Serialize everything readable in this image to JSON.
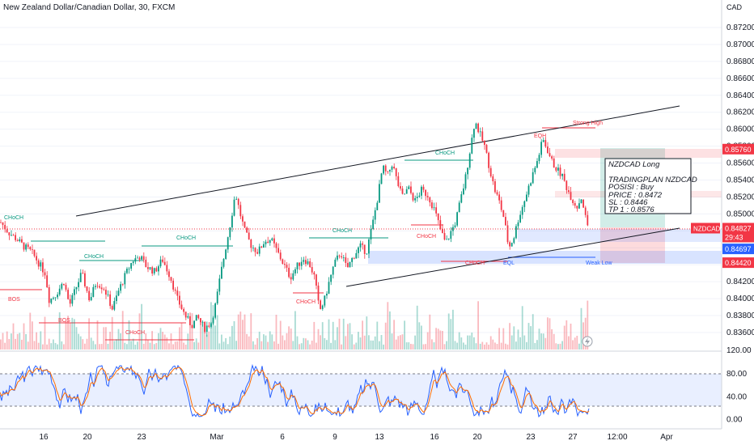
{
  "header": {
    "title": "New Zealand Dollar/Canadian Dollar, 30, FXCM",
    "currency": "CAD"
  },
  "chart_data": [
    {
      "type": "candlestick",
      "title": "New Zealand Dollar/Canadian Dollar, 30, FXCM",
      "symbol": "NZDCAD",
      "interval": "30",
      "source": "FXCM",
      "yaxis": {
        "ticks": [
          "0.87200",
          "0.87000",
          "0.86800",
          "0.86600",
          "0.86400",
          "0.86200",
          "0.86000",
          "0.85800",
          "0.85600",
          "0.85400",
          "0.85200",
          "0.85000",
          "0.84800",
          "0.84600",
          "0.84400",
          "0.84200",
          "0.84000",
          "0.83800",
          "0.83600"
        ],
        "range": [
          0.8352,
          0.8738
        ]
      },
      "xaxis": {
        "ticks": [
          "16",
          "20",
          "23",
          "Mar",
          "6",
          "9",
          "13",
          "16",
          "20",
          "23",
          "27",
          "12:00",
          "Apr"
        ]
      },
      "close_path": [
        [
          0,
          0.849
        ],
        [
          10,
          0.8478
        ],
        [
          20,
          0.847
        ],
        [
          28,
          0.8462
        ],
        [
          38,
          0.8455
        ],
        [
          45,
          0.8445
        ],
        [
          55,
          0.843
        ],
        [
          60,
          0.8398
        ],
        [
          68,
          0.8405
        ],
        [
          78,
          0.842
        ],
        [
          85,
          0.8392
        ],
        [
          92,
          0.841
        ],
        [
          100,
          0.843
        ],
        [
          110,
          0.8398
        ],
        [
          118,
          0.842
        ],
        [
          128,
          0.8412
        ],
        [
          138,
          0.8388
        ],
        [
          146,
          0.841
        ],
        [
          155,
          0.843
        ],
        [
          163,
          0.8445
        ],
        [
          172,
          0.845
        ],
        [
          180,
          0.8438
        ],
        [
          190,
          0.8432
        ],
        [
          200,
          0.8446
        ],
        [
          210,
          0.8425
        ],
        [
          218,
          0.84
        ],
        [
          228,
          0.838
        ],
        [
          236,
          0.8368
        ],
        [
          243,
          0.8378
        ],
        [
          252,
          0.8365
        ],
        [
          260,
          0.8372
        ],
        [
          266,
          0.8395
        ],
        [
          272,
          0.843
        ],
        [
          278,
          0.846
        ],
        [
          284,
          0.849
        ],
        [
          290,
          0.8525
        ],
        [
          296,
          0.85
        ],
        [
          302,
          0.8478
        ],
        [
          310,
          0.8462
        ],
        [
          318,
          0.8455
        ],
        [
          326,
          0.8468
        ],
        [
          334,
          0.847
        ],
        [
          342,
          0.8455
        ],
        [
          350,
          0.844
        ],
        [
          358,
          0.8425
        ],
        [
          366,
          0.8438
        ],
        [
          374,
          0.8448
        ],
        [
          382,
          0.844
        ],
        [
          388,
          0.8425
        ],
        [
          394,
          0.8385
        ],
        [
          400,
          0.8398
        ],
        [
          406,
          0.842
        ],
        [
          412,
          0.844
        ],
        [
          420,
          0.8455
        ],
        [
          428,
          0.8435
        ],
        [
          436,
          0.845
        ],
        [
          444,
          0.8462
        ],
        [
          452,
          0.8455
        ],
        [
          460,
          0.849
        ],
        [
          466,
          0.852
        ],
        [
          472,
          0.8555
        ],
        [
          478,
          0.8545
        ],
        [
          484,
          0.856
        ],
        [
          490,
          0.8538
        ],
        [
          496,
          0.852
        ],
        [
          504,
          0.853
        ],
        [
          512,
          0.8515
        ],
        [
          520,
          0.8528
        ],
        [
          528,
          0.8522
        ],
        [
          536,
          0.8505
        ],
        [
          544,
          0.848
        ],
        [
          550,
          0.8465
        ],
        [
          556,
          0.8478
        ],
        [
          562,
          0.849
        ],
        [
          568,
          0.8515
        ],
        [
          574,
          0.854
        ],
        [
          580,
          0.8575
        ],
        [
          586,
          0.861
        ],
        [
          592,
          0.8595
        ],
        [
          598,
          0.858
        ],
        [
          604,
          0.8555
        ],
        [
          610,
          0.853
        ],
        [
          616,
          0.8515
        ],
        [
          622,
          0.8495
        ],
        [
          628,
          0.846
        ],
        [
          634,
          0.8472
        ],
        [
          640,
          0.8495
        ],
        [
          646,
          0.8512
        ],
        [
          652,
          0.853
        ],
        [
          658,
          0.8548
        ],
        [
          664,
          0.8565
        ],
        [
          670,
          0.8588
        ],
        [
          676,
          0.8575
        ],
        [
          682,
          0.856
        ],
        [
          688,
          0.8552
        ],
        [
          694,
          0.8545
        ],
        [
          700,
          0.853
        ],
        [
          706,
          0.8518
        ],
        [
          712,
          0.8508
        ],
        [
          718,
          0.852
        ],
        [
          724,
          0.849
        ],
        [
          728,
          0.848
        ]
      ],
      "last_price": 0.84827,
      "countdown": "29:43",
      "price_labels": [
        {
          "text": "0.85760",
          "value": 0.8576,
          "color": "#f23645"
        },
        {
          "text": "NZDCAD",
          "value": 0.84827,
          "color": "#f23645",
          "symbol_tag": true
        },
        {
          "text": "0.84827",
          "value": 0.84827,
          "color": "#f23645"
        },
        {
          "text": "0.84697",
          "value": 0.84697,
          "color": "#2962ff"
        },
        {
          "text": "0.84420",
          "value": 0.8442,
          "color": "#f23645"
        }
      ],
      "annotations": {
        "choch_labels": [
          "CHoCH",
          "CHoCH",
          "CHoCH",
          "CHoCH",
          "CHoCH",
          "CHoCH",
          "CHoCH",
          "CHoCH",
          "CHoCH",
          "CHoCH"
        ],
        "bos_labels": [
          "BOS",
          "BOS"
        ],
        "strong_high": "Strong High",
        "weak_low": "Weak Low",
        "eqh": "EQH",
        "eql": "EQL"
      },
      "trade_note": {
        "lines": [
          "NZDCAD Long",
          "",
          "TRADINGPLAN NZDCAD",
          "POSISI : Buy",
          "PRICE : 0.8472",
          "SL : 0.8446",
          "TP 1 : 0.8576"
        ],
        "entry": 0.8472,
        "stop_loss": 0.8446,
        "take_profit": 0.8576
      },
      "volume_label": "120.00"
    },
    {
      "type": "line",
      "name": "Stochastic RSI",
      "yaxis": {
        "ticks": [
          "80.00",
          "40.00",
          "0.00"
        ],
        "range": [
          -5,
          100
        ]
      },
      "band": [
        20,
        80
      ],
      "colors": {
        "k": "#2962ff",
        "d": "#ff6d00",
        "band": "#2962ff"
      }
    }
  ],
  "colors": {
    "bull": "#089981",
    "bear": "#f23645",
    "background": "#ffffff",
    "grid": "#f0f3fa",
    "trendline": "#131722",
    "target_zone": "#089981",
    "stop_zone": "#f23645",
    "demand_zone": "#2962ff"
  }
}
